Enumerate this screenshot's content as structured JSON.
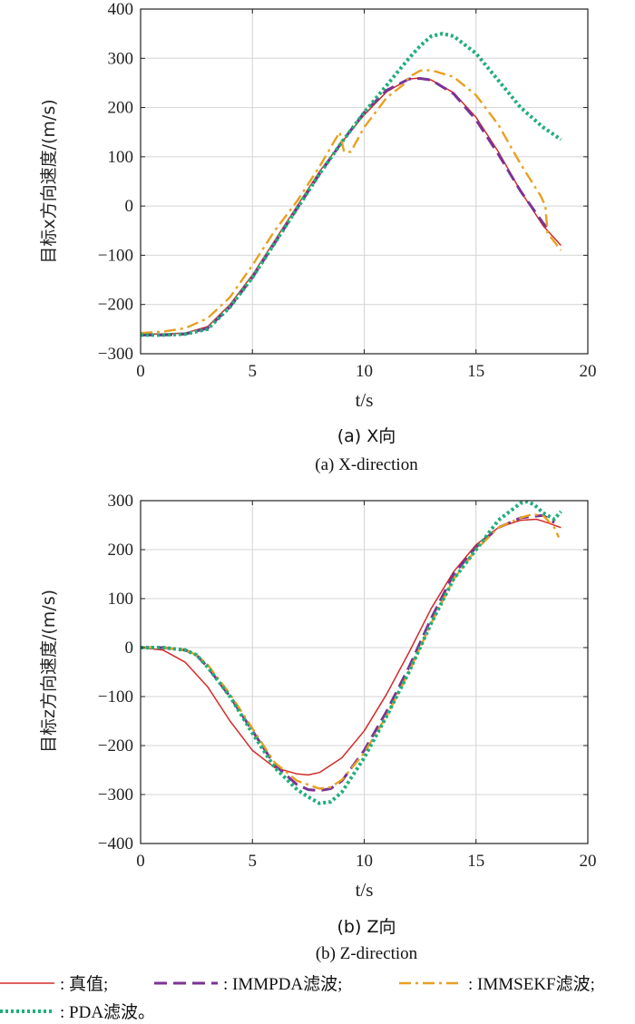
{
  "chart_data": [
    {
      "type": "line",
      "caption_cn": "(a) X向",
      "caption_en": "(a) X-direction",
      "ylabel": "目标x方向速度/(m/s)",
      "xlabel": "t/s",
      "xlim": [
        0,
        20
      ],
      "ylim": [
        -300,
        400
      ],
      "xticks": [
        0,
        5,
        10,
        15,
        20
      ],
      "yticks": [
        -300,
        -200,
        -100,
        0,
        100,
        200,
        300,
        400
      ],
      "grid": true,
      "series": [
        {
          "name": "真值",
          "color": "#d42a2a",
          "x": [
            0,
            1,
            2,
            3,
            4,
            5,
            6,
            7,
            8,
            9,
            10,
            11,
            12,
            12.5,
            13,
            14,
            15,
            16,
            17,
            18,
            18.8
          ],
          "y": [
            -260,
            -260,
            -258,
            -245,
            -200,
            -140,
            -70,
            0,
            70,
            130,
            185,
            232,
            258,
            260,
            256,
            230,
            180,
            110,
            30,
            -40,
            -80
          ]
        },
        {
          "name": "IMMPDA滤波",
          "color": "#7b3294",
          "x": [
            0,
            1,
            2,
            3,
            4,
            5,
            6,
            7,
            8,
            9,
            10,
            11,
            12,
            12.5,
            13,
            14,
            15,
            16,
            17,
            18,
            18.3
          ],
          "y": [
            -262,
            -262,
            -260,
            -248,
            -205,
            -145,
            -75,
            -5,
            65,
            130,
            190,
            235,
            258,
            259,
            256,
            228,
            175,
            105,
            30,
            -35,
            -50
          ]
        },
        {
          "name": "IMMSEKF滤波",
          "color": "#e8a020",
          "x": [
            0,
            1,
            2,
            3,
            4,
            5,
            6,
            7,
            8,
            8.9,
            9.1,
            9.4,
            10,
            11,
            11.8,
            12,
            12.5,
            13,
            14,
            15,
            16,
            17,
            17.9,
            18.1,
            18.2,
            18.8
          ],
          "y": [
            -258,
            -255,
            -248,
            -228,
            -185,
            -120,
            -50,
            10,
            80,
            150,
            110,
            110,
            160,
            220,
            248,
            262,
            275,
            276,
            262,
            225,
            165,
            85,
            20,
            0,
            -55,
            -90
          ]
        },
        {
          "name": "PDA滤波",
          "color": "#1fae7a",
          "x": [
            0,
            1,
            2,
            3,
            4,
            5,
            6,
            7,
            8,
            9,
            10,
            11,
            12,
            12.5,
            13,
            13.5,
            14,
            15,
            16,
            17,
            18,
            18.8
          ],
          "y": [
            -262,
            -262,
            -260,
            -250,
            -205,
            -145,
            -75,
            -5,
            65,
            130,
            190,
            245,
            300,
            325,
            345,
            350,
            345,
            310,
            255,
            200,
            160,
            135
          ]
        }
      ]
    },
    {
      "type": "line",
      "caption_cn": "(b) Z向",
      "caption_en": "(b) Z-direction",
      "ylabel": "目标z方向速度/(m/s)",
      "xlabel": "t/s",
      "xlim": [
        0,
        20
      ],
      "ylim": [
        -400,
        300
      ],
      "xticks": [
        0,
        5,
        10,
        15,
        20
      ],
      "yticks": [
        -400,
        -300,
        -200,
        -100,
        0,
        100,
        200,
        300
      ],
      "grid": true,
      "series": [
        {
          "name": "真值",
          "color": "#d42a2a",
          "x": [
            0,
            1,
            2,
            3,
            4,
            5,
            6,
            7,
            7.5,
            8,
            9,
            10,
            11,
            12,
            13,
            14,
            15,
            16,
            17,
            17.7,
            18,
            18.8
          ],
          "y": [
            0,
            -5,
            -30,
            -80,
            -150,
            -210,
            -245,
            -258,
            -260,
            -255,
            -225,
            -170,
            -95,
            -10,
            80,
            155,
            210,
            245,
            260,
            262,
            258,
            245
          ]
        },
        {
          "name": "IMMPDA滤波",
          "color": "#7b3294",
          "x": [
            0,
            1,
            2,
            2.5,
            3,
            4,
            5,
            6,
            7,
            7.5,
            8,
            8.5,
            9,
            10,
            11,
            12,
            13,
            14,
            15,
            16,
            17,
            18,
            18.5
          ],
          "y": [
            0,
            0,
            -5,
            -15,
            -40,
            -100,
            -170,
            -240,
            -280,
            -290,
            -292,
            -288,
            -272,
            -210,
            -130,
            -40,
            60,
            150,
            205,
            245,
            265,
            270,
            255
          ]
        },
        {
          "name": "IMMSEKF滤波",
          "color": "#e8a020",
          "x": [
            0,
            1,
            2,
            2.5,
            3,
            4,
            5,
            6,
            7,
            8,
            8.5,
            9,
            10,
            11,
            12,
            13,
            14,
            15,
            16,
            17,
            17.5,
            18,
            18.5,
            18.7
          ],
          "y": [
            0,
            0,
            -5,
            -15,
            -35,
            -95,
            -165,
            -235,
            -272,
            -288,
            -285,
            -270,
            -215,
            -140,
            -50,
            50,
            140,
            200,
            245,
            265,
            272,
            270,
            245,
            225
          ]
        },
        {
          "name": "PDA滤波",
          "color": "#1fae7a",
          "x": [
            0,
            1,
            2,
            2.5,
            3,
            4,
            5,
            6,
            7,
            7.5,
            8,
            8.5,
            9,
            10,
            11,
            12,
            13,
            14,
            15,
            16,
            17,
            17.3,
            17.6,
            18,
            18.5,
            18.8
          ],
          "y": [
            0,
            0,
            -5,
            -15,
            -40,
            -100,
            -175,
            -245,
            -290,
            -305,
            -318,
            -315,
            -295,
            -225,
            -140,
            -50,
            50,
            140,
            200,
            260,
            295,
            298,
            292,
            275,
            262,
            278
          ]
        }
      ]
    }
  ],
  "legend": [
    {
      "label": ": 真值;",
      "color": "#d42a2a",
      "style": "solid"
    },
    {
      "label": ": IMMPDA滤波;",
      "color": "#7b3294",
      "style": "dashed"
    },
    {
      "label": ": IMMSEKF滤波;",
      "color": "#e8a020",
      "style": "dashdot"
    },
    {
      "label": ": PDA滤波。",
      "color": "#1fae7a",
      "style": "dotted"
    }
  ]
}
